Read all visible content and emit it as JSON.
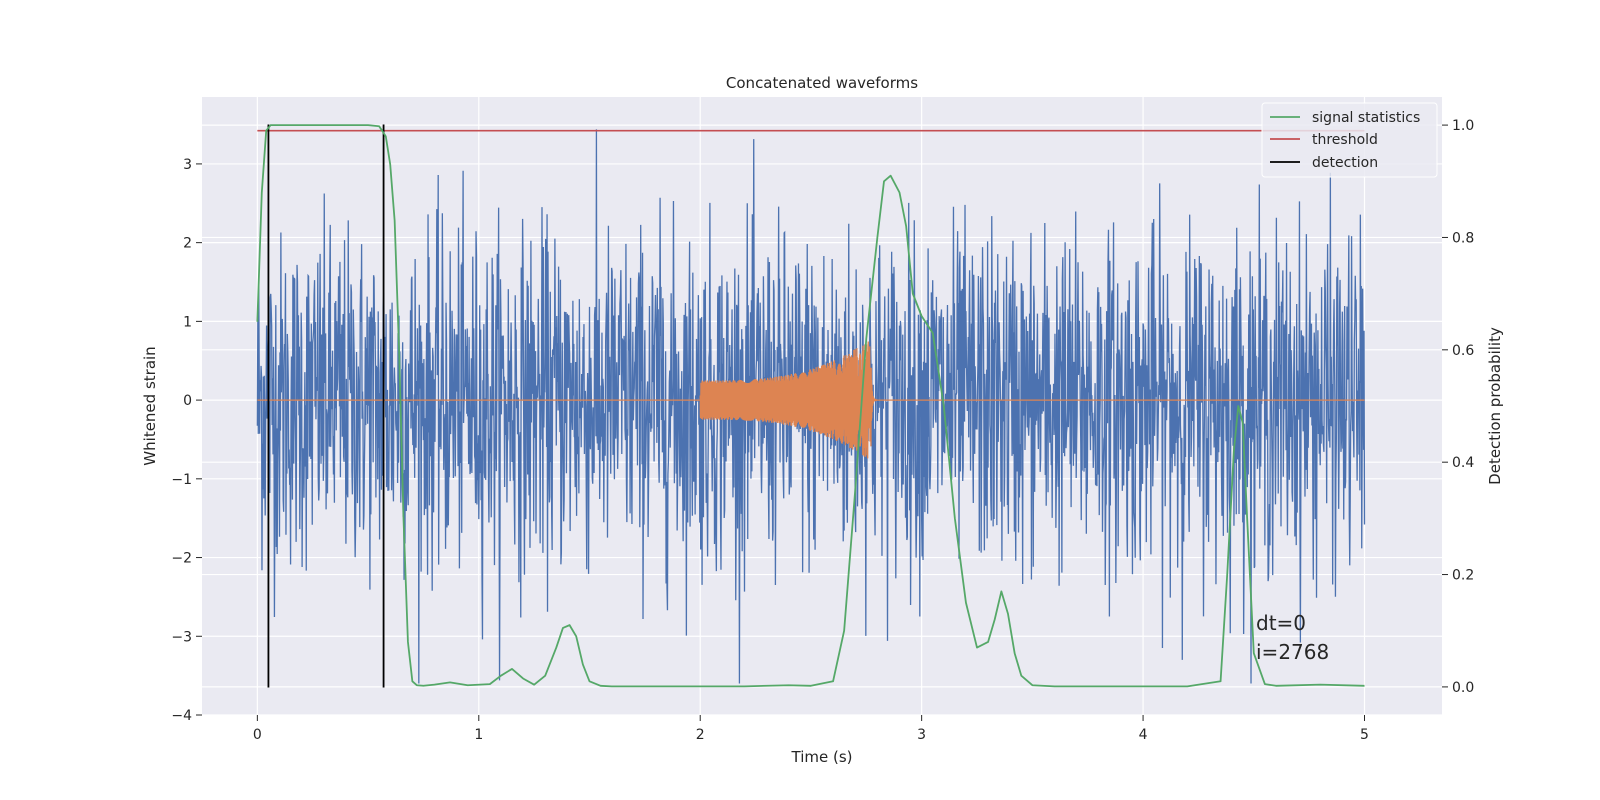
{
  "chart_data": {
    "type": "line",
    "title": "Concatenated waveforms",
    "xlabel": "Time (s)",
    "ylabel": "Whitened strain",
    "ylabel_right": "Detection probability",
    "xlim": [
      -0.25,
      5.35
    ],
    "ylim": [
      -4.0,
      3.85
    ],
    "ylim_right": [
      -0.05,
      1.05
    ],
    "x_ticks": [
      0,
      1,
      2,
      3,
      4,
      5
    ],
    "y_ticks": [
      -4,
      -3,
      -2,
      -1,
      0,
      1,
      2,
      3
    ],
    "y_ticks_right": [
      0.0,
      0.2,
      0.4,
      0.6,
      0.8,
      1.0
    ],
    "x_tick_labels": [
      "0",
      "1",
      "2",
      "3",
      "4",
      "5"
    ],
    "y_tick_labels": [
      "−4",
      "−3",
      "−2",
      "−1",
      "0",
      "1",
      "2",
      "3"
    ],
    "y_tick_labels_right": [
      "0.0",
      "0.2",
      "0.4",
      "0.6",
      "0.8",
      "1.0"
    ],
    "grid": true,
    "legend_position": "top-right",
    "colors": {
      "background": "#eaeaf2",
      "grid": "#ffffff",
      "strain": "#4c72b0",
      "injection": "#dd8452",
      "signal_statistics": "#55a868",
      "threshold": "#c44e52",
      "detection": "#000000"
    },
    "series": [
      {
        "name": "strain",
        "axis": "left",
        "color": "#4c72b0",
        "description_range": [
          0,
          5
        ],
        "amplitude_envelope": [
          -3.6,
          3.45
        ]
      },
      {
        "name": "injected signal",
        "axis": "left",
        "color": "#dd8452",
        "x_start": 2.0,
        "x_merger": 2.77,
        "peak_amplitude": 0.78,
        "start_amplitude": 0.25
      },
      {
        "name": "signal statistics",
        "axis": "right",
        "color": "#55a868",
        "x": [
          0.0,
          0.02,
          0.04,
          0.06,
          0.08,
          0.1,
          0.2,
          0.3,
          0.4,
          0.5,
          0.55,
          0.58,
          0.6,
          0.62,
          0.64,
          0.66,
          0.68,
          0.7,
          0.72,
          0.75,
          0.8,
          0.87,
          0.95,
          1.05,
          1.1,
          1.15,
          1.2,
          1.25,
          1.3,
          1.35,
          1.38,
          1.41,
          1.44,
          1.47,
          1.5,
          1.55,
          1.6,
          1.8,
          2.0,
          2.2,
          2.4,
          2.5,
          2.6,
          2.65,
          2.7,
          2.75,
          2.8,
          2.83,
          2.86,
          2.9,
          2.93,
          2.96,
          3.0,
          3.05,
          3.1,
          3.15,
          3.2,
          3.25,
          3.3,
          3.33,
          3.36,
          3.39,
          3.42,
          3.45,
          3.5,
          3.6,
          3.8,
          4.0,
          4.2,
          4.35,
          4.38,
          4.41,
          4.43,
          4.45,
          4.47,
          4.5,
          4.55,
          4.6,
          4.8,
          5.0
        ],
        "values": [
          0.65,
          0.88,
          0.99,
          1.0,
          1.0,
          1.0,
          1.0,
          1.0,
          1.0,
          1.0,
          0.998,
          0.98,
          0.93,
          0.83,
          0.6,
          0.3,
          0.08,
          0.01,
          0.003,
          0.002,
          0.004,
          0.008,
          0.003,
          0.005,
          0.02,
          0.032,
          0.015,
          0.004,
          0.02,
          0.07,
          0.105,
          0.11,
          0.09,
          0.04,
          0.01,
          0.002,
          0.001,
          0.001,
          0.001,
          0.001,
          0.003,
          0.002,
          0.01,
          0.1,
          0.35,
          0.62,
          0.8,
          0.9,
          0.91,
          0.88,
          0.82,
          0.7,
          0.66,
          0.63,
          0.5,
          0.3,
          0.15,
          0.07,
          0.08,
          0.12,
          0.17,
          0.13,
          0.06,
          0.02,
          0.003,
          0.001,
          0.001,
          0.001,
          0.001,
          0.01,
          0.2,
          0.42,
          0.5,
          0.47,
          0.3,
          0.06,
          0.005,
          0.002,
          0.004,
          0.002
        ]
      },
      {
        "name": "threshold",
        "axis": "right",
        "color": "#c44e52",
        "x": [
          0,
          5
        ],
        "values": [
          0.99,
          0.99
        ]
      },
      {
        "name": "detection",
        "axis": "left",
        "color": "#000000",
        "x": [
          0.05,
          0.57
        ],
        "y_range": [
          -3.65,
          3.5
        ]
      }
    ],
    "legend": [
      "signal statistics",
      "threshold",
      "detection"
    ],
    "annotations": [
      "dt=0",
      "i=2768"
    ]
  }
}
